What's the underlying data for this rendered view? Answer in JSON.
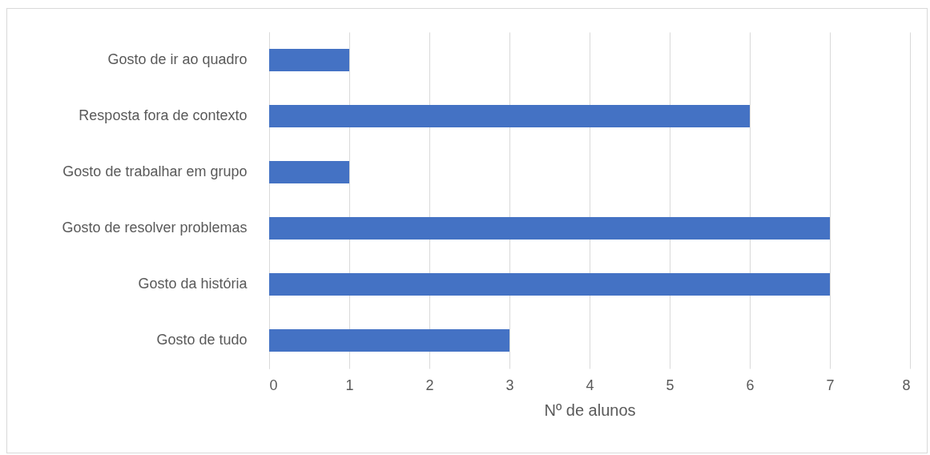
{
  "chart_data": {
    "type": "bar",
    "orientation": "horizontal",
    "xlabel": "Nº de alunos",
    "categories": [
      "Gosto de ir ao quadro",
      "Resposta fora de contexto",
      "Gosto de trabalhar em grupo",
      "Gosto de resolver problemas",
      "Gosto da história",
      "Gosto de tudo"
    ],
    "values": [
      1,
      6,
      1,
      7,
      7,
      3
    ],
    "color": "#4472c4",
    "xlim": [
      0,
      8
    ],
    "xticks": [
      0,
      1,
      2,
      3,
      4,
      5,
      6,
      7,
      8
    ],
    "grid": "x"
  }
}
